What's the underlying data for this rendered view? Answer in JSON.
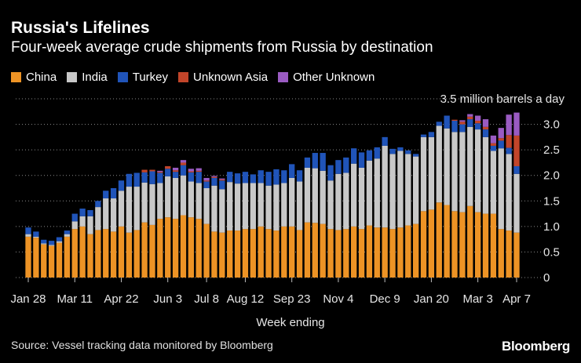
{
  "header": {
    "title": "Russia's Lifelines",
    "subtitle": "Four-week average crude shipments from Russia by destination"
  },
  "legend": [
    {
      "label": "China",
      "color": "#ED9325"
    },
    {
      "label": "India",
      "color": "#C8C8C8"
    },
    {
      "label": "Turkey",
      "color": "#2054B9"
    },
    {
      "label": "Unknown Asia",
      "color": "#C2452A"
    },
    {
      "label": "Other Unknown",
      "color": "#9A5BC2"
    }
  ],
  "footer": {
    "source": "Source: Vessel tracking data monitored by Bloomberg",
    "brand": "Bloomberg"
  },
  "chart_data": {
    "type": "bar",
    "stacked": true,
    "xlabel": "Week ending",
    "ylabel": "",
    "ylim": [
      0,
      3.5
    ],
    "yticks": [
      0,
      0.5,
      1.0,
      1.5,
      2.0,
      2.5,
      3.0
    ],
    "ytick_labels": [
      "0",
      "0.5",
      "1.0",
      "1.5",
      "2.0",
      "2.5",
      "3.0"
    ],
    "top_annotation": "3.5 million barrels a day",
    "grid": "horizontal dotted",
    "legend_position": "top-left",
    "x_tick_labels": [
      {
        "index": 0,
        "label": "Jan 28"
      },
      {
        "index": 6,
        "label": "Mar 11"
      },
      {
        "index": 12,
        "label": "Apr 22"
      },
      {
        "index": 18,
        "label": "Jun 3"
      },
      {
        "index": 23,
        "label": "Jul 8"
      },
      {
        "index": 28,
        "label": "Aug 12"
      },
      {
        "index": 34,
        "label": "Sep 23"
      },
      {
        "index": 40,
        "label": "Nov 4"
      },
      {
        "index": 46,
        "label": "Dec 9"
      },
      {
        "index": 52,
        "label": "Jan 20"
      },
      {
        "index": 58,
        "label": "Mar 3"
      },
      {
        "index": 63,
        "label": "Apr 7"
      }
    ],
    "series": [
      {
        "name": "China",
        "values": [
          0.8,
          0.78,
          0.65,
          0.62,
          0.68,
          0.8,
          0.95,
          1.0,
          0.85,
          0.93,
          0.95,
          0.9,
          1.0,
          0.88,
          0.93,
          1.08,
          1.03,
          1.15,
          1.18,
          1.15,
          1.22,
          1.18,
          1.15,
          1.05,
          0.9,
          0.88,
          0.92,
          0.92,
          0.95,
          0.95,
          1.0,
          0.95,
          0.92,
          1.0,
          1.0,
          0.93,
          1.08,
          1.07,
          1.05,
          0.95,
          0.93,
          0.95,
          1.0,
          0.95,
          1.02,
          0.98,
          0.98,
          0.95,
          0.98,
          1.02,
          1.05,
          1.3,
          1.33,
          1.47,
          1.42,
          1.3,
          1.28,
          1.4,
          1.28,
          1.25,
          1.25,
          0.95,
          0.92,
          0.88
        ]
      },
      {
        "name": "India",
        "values": [
          0.05,
          0.02,
          0.02,
          0.02,
          0.03,
          0.05,
          0.15,
          0.2,
          0.35,
          0.45,
          0.6,
          0.65,
          0.7,
          0.9,
          0.85,
          0.78,
          0.8,
          0.7,
          0.8,
          0.8,
          0.78,
          0.7,
          0.7,
          0.7,
          0.9,
          0.85,
          0.95,
          0.92,
          0.9,
          0.9,
          0.85,
          0.85,
          0.9,
          0.85,
          0.95,
          0.95,
          1.07,
          1.07,
          1.04,
          0.95,
          1.1,
          1.1,
          1.23,
          1.2,
          1.27,
          1.35,
          1.6,
          1.47,
          1.5,
          1.4,
          1.32,
          1.45,
          1.42,
          1.5,
          1.5,
          1.55,
          1.57,
          1.55,
          1.62,
          1.5,
          1.23,
          1.58,
          1.5,
          1.15
        ]
      },
      {
        "name": "Turkey",
        "values": [
          0.13,
          0.1,
          0.07,
          0.08,
          0.08,
          0.07,
          0.15,
          0.15,
          0.12,
          0.12,
          0.15,
          0.2,
          0.2,
          0.25,
          0.27,
          0.2,
          0.25,
          0.2,
          0.15,
          0.12,
          0.2,
          0.18,
          0.22,
          0.13,
          0.15,
          0.17,
          0.2,
          0.2,
          0.22,
          0.17,
          0.25,
          0.27,
          0.3,
          0.25,
          0.27,
          0.22,
          0.2,
          0.3,
          0.35,
          0.3,
          0.27,
          0.3,
          0.3,
          0.3,
          0.2,
          0.22,
          0.17,
          0.1,
          0.07,
          0.07,
          0.05,
          0.05,
          0.1,
          0.08,
          0.25,
          0.22,
          0.15,
          0.15,
          0.12,
          0.15,
          0.1,
          0.15,
          0.12,
          0.15
        ]
      },
      {
        "name": "Unknown Asia",
        "values": [
          0,
          0,
          0,
          0,
          0,
          0,
          0,
          0,
          0,
          0,
          0,
          0,
          0,
          0,
          0,
          0.05,
          0.03,
          0.02,
          0.05,
          0.03,
          0.05,
          0.02,
          0.02,
          0.02,
          0.02,
          0.02,
          0,
          0,
          0,
          0,
          0,
          0,
          0,
          0,
          0,
          0,
          0,
          0,
          0,
          0,
          0,
          0,
          0,
          0,
          0,
          0,
          0,
          0,
          0,
          0,
          0,
          0,
          0,
          0,
          0,
          0.02,
          0.05,
          0.05,
          0.05,
          0.05,
          0.05,
          0.05,
          0.25,
          0.6
        ]
      },
      {
        "name": "Other Unknown",
        "values": [
          0,
          0,
          0,
          0,
          0,
          0,
          0,
          0,
          0,
          0,
          0,
          0,
          0,
          0,
          0,
          0,
          0,
          0.02,
          0,
          0.05,
          0.05,
          0.05,
          0.05,
          0.05,
          0.02,
          0.02,
          0,
          0,
          0,
          0,
          0,
          0,
          0,
          0,
          0,
          0,
          0,
          0,
          0,
          0,
          0,
          0,
          0,
          0,
          0,
          0,
          0,
          0,
          0,
          0,
          0,
          0,
          0,
          0,
          0,
          0,
          0.03,
          0.05,
          0.1,
          0.15,
          0.15,
          0.2,
          0.4,
          0.45
        ]
      }
    ]
  }
}
